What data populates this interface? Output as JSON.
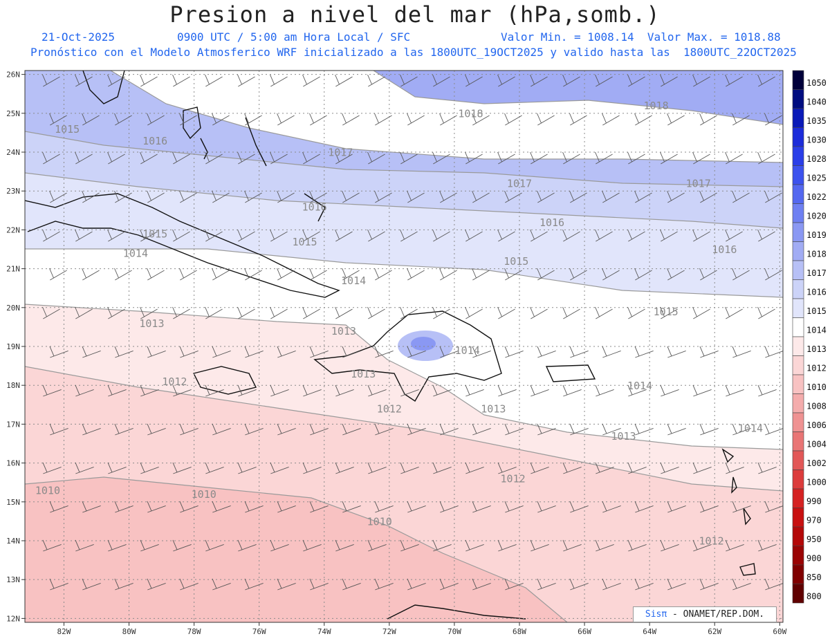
{
  "title": "Presion a nivel del mar (hPa,somb.)",
  "subtitle": {
    "date": "21-Oct-2025",
    "time": "0900 UTC / 5:00 am Hora Local / SFC",
    "minmax": "Valor Min. = 1008.14  Valor Max. = 1018.88",
    "model": "Pronóstico con el Modelo Atmosferico WRF inicializado a las 1800UTC_19OCT2025 y valido hasta las  1800UTC_22OCT2025"
  },
  "credit": {
    "brand": "Sisπ",
    "text": " - ONAMET/REP.DOM."
  },
  "map": {
    "lon_range": [
      -83.2,
      -59.9
    ],
    "lat_range": [
      11.9,
      26.1
    ],
    "lat_ticks": [
      {
        "v": 26,
        "label": "26N"
      },
      {
        "v": 25,
        "label": "25N"
      },
      {
        "v": 24,
        "label": "24N"
      },
      {
        "v": 23,
        "label": "23N"
      },
      {
        "v": 22,
        "label": "22N"
      },
      {
        "v": 21,
        "label": "21N"
      },
      {
        "v": 20,
        "label": "20N"
      },
      {
        "v": 19,
        "label": "19N"
      },
      {
        "v": 18,
        "label": "18N"
      },
      {
        "v": 17,
        "label": "17N"
      },
      {
        "v": 16,
        "label": "16N"
      },
      {
        "v": 15,
        "label": "15N"
      },
      {
        "v": 14,
        "label": "14N"
      },
      {
        "v": 13,
        "label": "13N"
      },
      {
        "v": 12,
        "label": "12N"
      }
    ],
    "lon_ticks": [
      {
        "v": -82,
        "label": "82W"
      },
      {
        "v": -80,
        "label": "80W"
      },
      {
        "v": -78,
        "label": "78W"
      },
      {
        "v": -76,
        "label": "76W"
      },
      {
        "v": -74,
        "label": "74W"
      },
      {
        "v": -72,
        "label": "72W"
      },
      {
        "v": -70,
        "label": "70W"
      },
      {
        "v": -68,
        "label": "68W"
      },
      {
        "v": -66,
        "label": "66W"
      },
      {
        "v": -64,
        "label": "64W"
      },
      {
        "v": -62,
        "label": "62W"
      },
      {
        "v": -60,
        "label": "60W"
      }
    ],
    "contour_labels": [
      {
        "text": "1015",
        "lon": -81.9,
        "lat": 24.5
      },
      {
        "text": "1016",
        "lon": -79.2,
        "lat": 24.2
      },
      {
        "text": "1017",
        "lon": -73.5,
        "lat": 23.9
      },
      {
        "text": "1018",
        "lon": -69.5,
        "lat": 24.9
      },
      {
        "text": "1018",
        "lon": -63.8,
        "lat": 25.1
      },
      {
        "text": "1017",
        "lon": -68.0,
        "lat": 23.1
      },
      {
        "text": "1017",
        "lon": -62.5,
        "lat": 23.1
      },
      {
        "text": "1016",
        "lon": -74.3,
        "lat": 22.5
      },
      {
        "text": "1016",
        "lon": -67.0,
        "lat": 22.1
      },
      {
        "text": "1016",
        "lon": -61.7,
        "lat": 21.4
      },
      {
        "text": "1015",
        "lon": -79.2,
        "lat": 21.8
      },
      {
        "text": "1015",
        "lon": -74.6,
        "lat": 21.6
      },
      {
        "text": "1014",
        "lon": -79.8,
        "lat": 21.3
      },
      {
        "text": "1015",
        "lon": -68.1,
        "lat": 21.1
      },
      {
        "text": "1014",
        "lon": -73.1,
        "lat": 20.6
      },
      {
        "text": "1015",
        "lon": -63.5,
        "lat": 19.8
      },
      {
        "text": "1013",
        "lon": -79.3,
        "lat": 19.5
      },
      {
        "text": "1013",
        "lon": -73.4,
        "lat": 19.3
      },
      {
        "text": "1014",
        "lon": -69.6,
        "lat": 18.8
      },
      {
        "text": "1012",
        "lon": -78.6,
        "lat": 18.0
      },
      {
        "text": "1013",
        "lon": -72.8,
        "lat": 18.2
      },
      {
        "text": "1014",
        "lon": -64.3,
        "lat": 17.9
      },
      {
        "text": "1012",
        "lon": -72.0,
        "lat": 17.3
      },
      {
        "text": "1013",
        "lon": -68.8,
        "lat": 17.3
      },
      {
        "text": "1013",
        "lon": -64.8,
        "lat": 16.6
      },
      {
        "text": "1014",
        "lon": -60.9,
        "lat": 16.8
      },
      {
        "text": "1012",
        "lon": -68.2,
        "lat": 15.5
      },
      {
        "text": "1010",
        "lon": -82.5,
        "lat": 15.2
      },
      {
        "text": "1010",
        "lon": -77.7,
        "lat": 15.1
      },
      {
        "text": "1010",
        "lon": -72.3,
        "lat": 14.4
      },
      {
        "text": "1012",
        "lon": -62.1,
        "lat": 13.9
      }
    ]
  },
  "colorbar": {
    "labels": [
      "1050",
      "1040",
      "1035",
      "1030",
      "1028",
      "1025",
      "1022",
      "1020",
      "1019",
      "1018",
      "1017",
      "1016",
      "1015",
      "1014",
      "1013",
      "1012",
      "1010",
      "1008",
      "1006",
      "1004",
      "1002",
      "1000",
      "990",
      "970",
      "950",
      "900",
      "850",
      "800"
    ],
    "colors": [
      "#00003a",
      "#000d80",
      "#0a1ab8",
      "#1c2cda",
      "#2a3ee8",
      "#3c52ee",
      "#5468f0",
      "#6e80f2",
      "#8a98f3",
      "#a1acf4",
      "#b7c0f6",
      "#ccd3f8",
      "#e1e5fb",
      "#ffffff",
      "#fde9e9",
      "#fbd6d6",
      "#f8c2c2",
      "#f4acac",
      "#ef9292",
      "#e97575",
      "#e25858",
      "#dc3c3c",
      "#d52222",
      "#c81010",
      "#b40808",
      "#9a0404",
      "#800000",
      "#600000"
    ]
  },
  "colors": {
    "text_blue": "#2266ee",
    "contour": "#9a9a9a",
    "coast": "#111111",
    "grid": "#8a8a8a"
  }
}
